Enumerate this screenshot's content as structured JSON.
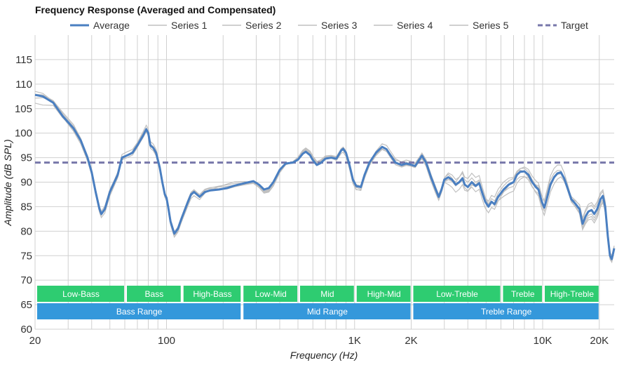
{
  "chart_data": {
    "type": "line",
    "title": "Frequency Response (Averaged and Compensated)",
    "xlabel": "Frequency (Hz)",
    "ylabel": "Amplitude (dB SPL)",
    "x_scale": "log",
    "xlim": [
      20,
      24000
    ],
    "ylim": [
      60,
      120
    ],
    "x_ticks": [
      {
        "value": 20,
        "label": "20"
      },
      {
        "value": 100,
        "label": "100"
      },
      {
        "value": 1000,
        "label": "1K"
      },
      {
        "value": 2000,
        "label": "2K"
      },
      {
        "value": 10000,
        "label": "10K"
      },
      {
        "value": 20000,
        "label": "20K"
      }
    ],
    "y_ticks": [
      60,
      65,
      70,
      75,
      80,
      85,
      90,
      95,
      100,
      105,
      110,
      115
    ],
    "grid": true,
    "legend_position": "top",
    "legend": [
      {
        "label": "Average",
        "color": "#4a7fc1",
        "style": "solid"
      },
      {
        "label": "Series 1",
        "color": "#c0c0c0",
        "style": "solid"
      },
      {
        "label": "Series 2",
        "color": "#c0c0c0",
        "style": "solid"
      },
      {
        "label": "Series 3",
        "color": "#c0c0c0",
        "style": "solid"
      },
      {
        "label": "Series 4",
        "color": "#c0c0c0",
        "style": "solid"
      },
      {
        "label": "Series 5",
        "color": "#c0c0c0",
        "style": "solid"
      },
      {
        "label": "Target",
        "color": "#7777aa",
        "style": "dashed"
      }
    ],
    "target_value": 94,
    "average": {
      "name": "Average",
      "points": [
        [
          20,
          107.8
        ],
        [
          22,
          107.5
        ],
        [
          25,
          106.2
        ],
        [
          28,
          103.5
        ],
        [
          32,
          101
        ],
        [
          35,
          98.5
        ],
        [
          38,
          95
        ],
        [
          40,
          92
        ],
        [
          42,
          88
        ],
        [
          44,
          84.5
        ],
        [
          45,
          83.5
        ],
        [
          47,
          84.5
        ],
        [
          50,
          88
        ],
        [
          55,
          91.5
        ],
        [
          58,
          95
        ],
        [
          62,
          95.5
        ],
        [
          66,
          96
        ],
        [
          70,
          97.5
        ],
        [
          75,
          99.5
        ],
        [
          78,
          100.8
        ],
        [
          80,
          100
        ],
        [
          82,
          97.5
        ],
        [
          85,
          97
        ],
        [
          88,
          96
        ],
        [
          92,
          93
        ],
        [
          95,
          90
        ],
        [
          98,
          87.5
        ],
        [
          100,
          86.8
        ],
        [
          102,
          85
        ],
        [
          105,
          82
        ],
        [
          110,
          79.5
        ],
        [
          115,
          80.5
        ],
        [
          120,
          82.5
        ],
        [
          130,
          86
        ],
        [
          135,
          87.5
        ],
        [
          140,
          88
        ],
        [
          150,
          87
        ],
        [
          160,
          88
        ],
        [
          170,
          88.3
        ],
        [
          190,
          88.5
        ],
        [
          210,
          88.8
        ],
        [
          230,
          89.3
        ],
        [
          260,
          89.8
        ],
        [
          290,
          90.2
        ],
        [
          310,
          89.5
        ],
        [
          330,
          88.5
        ],
        [
          350,
          88.8
        ],
        [
          370,
          90
        ],
        [
          400,
          92.5
        ],
        [
          430,
          93.8
        ],
        [
          470,
          94
        ],
        [
          500,
          94.6
        ],
        [
          530,
          95.8
        ],
        [
          550,
          96.2
        ],
        [
          580,
          95.5
        ],
        [
          600,
          94.5
        ],
        [
          630,
          93.5
        ],
        [
          660,
          93.9
        ],
        [
          700,
          94.8
        ],
        [
          750,
          95
        ],
        [
          800,
          94.8
        ],
        [
          850,
          96.5
        ],
        [
          870,
          96.8
        ],
        [
          900,
          96
        ],
        [
          940,
          93.5
        ],
        [
          980,
          90.5
        ],
        [
          1020,
          89.2
        ],
        [
          1080,
          89
        ],
        [
          1130,
          91.5
        ],
        [
          1200,
          94
        ],
        [
          1300,
          96
        ],
        [
          1400,
          97.2
        ],
        [
          1480,
          96.7
        ],
        [
          1550,
          95.5
        ],
        [
          1650,
          94
        ],
        [
          1780,
          93.5
        ],
        [
          1880,
          93.8
        ],
        [
          1980,
          93.6
        ],
        [
          2100,
          93.3
        ],
        [
          2200,
          94.5
        ],
        [
          2280,
          95.4
        ],
        [
          2400,
          94
        ],
        [
          2550,
          91
        ],
        [
          2700,
          88.5
        ],
        [
          2800,
          87
        ],
        [
          2900,
          88.5
        ],
        [
          3000,
          90.5
        ],
        [
          3150,
          91
        ],
        [
          3300,
          90.5
        ],
        [
          3450,
          89.5
        ],
        [
          3600,
          90
        ],
        [
          3750,
          90.8
        ],
        [
          3850,
          89.5
        ],
        [
          4000,
          89
        ],
        [
          4200,
          90
        ],
        [
          4400,
          89.2
        ],
        [
          4600,
          89.8
        ],
        [
          4800,
          87.5
        ],
        [
          4950,
          86
        ],
        [
          5150,
          85
        ],
        [
          5350,
          86
        ],
        [
          5550,
          85.5
        ],
        [
          5800,
          87
        ],
        [
          6200,
          88.5
        ],
        [
          6600,
          89.5
        ],
        [
          7000,
          90
        ],
        [
          7300,
          91.5
        ],
        [
          7600,
          92.1
        ],
        [
          8000,
          92.2
        ],
        [
          8400,
          91.5
        ],
        [
          8800,
          90
        ],
        [
          9200,
          89
        ],
        [
          9500,
          88.5
        ],
        [
          9900,
          86
        ],
        [
          10200,
          84.8
        ],
        [
          10500,
          86.5
        ],
        [
          11000,
          89.5
        ],
        [
          11500,
          91
        ],
        [
          12000,
          91.8
        ],
        [
          12500,
          92
        ],
        [
          13000,
          90.8
        ],
        [
          13500,
          89
        ],
        [
          14200,
          86.5
        ],
        [
          15000,
          85.5
        ],
        [
          15700,
          84.5
        ],
        [
          16300,
          81.5
        ],
        [
          16900,
          83
        ],
        [
          17500,
          84
        ],
        [
          18200,
          84.3
        ],
        [
          18800,
          83.5
        ],
        [
          19500,
          84.5
        ],
        [
          20300,
          86.5
        ],
        [
          20900,
          87.2
        ],
        [
          21500,
          85
        ],
        [
          22200,
          79
        ],
        [
          22800,
          75
        ],
        [
          23300,
          74.3
        ],
        [
          23700,
          75.5
        ],
        [
          24000,
          76.5
        ]
      ]
    },
    "bands": [
      {
        "label": "Low-Bass",
        "start": 20,
        "end": 60,
        "row": 1
      },
      {
        "label": "Bass",
        "start": 60,
        "end": 120,
        "row": 1
      },
      {
        "label": "High-Bass",
        "start": 120,
        "end": 250,
        "row": 1
      },
      {
        "label": "Low-Mid",
        "start": 250,
        "end": 500,
        "row": 1
      },
      {
        "label": "Mid",
        "start": 500,
        "end": 1000,
        "row": 1
      },
      {
        "label": "High-Mid",
        "start": 1000,
        "end": 2000,
        "row": 1
      },
      {
        "label": "Low-Treble",
        "start": 2000,
        "end": 6000,
        "row": 1
      },
      {
        "label": "Treble",
        "start": 6000,
        "end": 10000,
        "row": 1
      },
      {
        "label": "High-Treble",
        "start": 10000,
        "end": 20000,
        "row": 1
      },
      {
        "label": "Bass Range",
        "start": 20,
        "end": 250,
        "row": 2
      },
      {
        "label": "Mid Range",
        "start": 250,
        "end": 2000,
        "row": 2
      },
      {
        "label": "Treble Range",
        "start": 2000,
        "end": 20000,
        "row": 2
      }
    ],
    "colors": {
      "average": "#4a7fc1",
      "series": "#c0c0c0",
      "target": "#7777aa",
      "band_row1": "#2ecc71",
      "band_row2": "#3498db",
      "grid": "#d0d0d0"
    }
  }
}
